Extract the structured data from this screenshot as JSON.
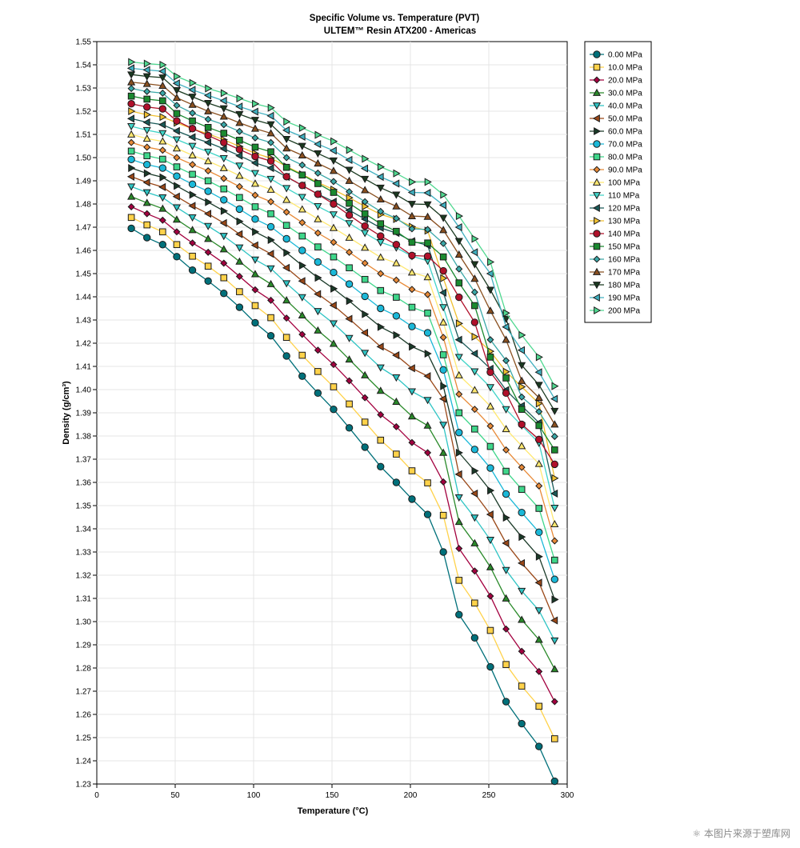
{
  "chart_data": {
    "type": "line",
    "title": "Specific Volume vs. Temperature (PVT)",
    "subtitle": "ULTEM™ Resin ATX200 - Americas",
    "xlabel": "Temperature (°C)",
    "ylabel": "Density (g/cm³)",
    "xlim": [
      0,
      300
    ],
    "ylim": [
      1.23,
      1.55
    ],
    "xticks": [
      0,
      50,
      100,
      150,
      200,
      250,
      300
    ],
    "yticks": [
      1.23,
      1.24,
      1.25,
      1.26,
      1.27,
      1.28,
      1.29,
      1.3,
      1.31,
      1.32,
      1.33,
      1.34,
      1.35,
      1.36,
      1.37,
      1.38,
      1.39,
      1.4,
      1.41,
      1.42,
      1.43,
      1.44,
      1.45,
      1.46,
      1.47,
      1.48,
      1.49,
      1.5,
      1.51,
      1.52,
      1.53,
      1.54,
      1.55
    ],
    "grid": true,
    "legend_position": "right",
    "x": [
      22,
      32,
      42,
      51,
      61,
      71,
      81,
      91,
      101,
      111,
      121,
      131,
      141,
      151,
      161,
      171,
      181,
      191,
      201,
      211,
      221,
      231,
      241,
      251,
      261,
      271,
      282,
      292
    ],
    "series": [
      {
        "name": "0.00 MPa",
        "marker": "circle",
        "color": "#00707a",
        "values": [
          1.4695,
          1.4655,
          1.4625,
          1.4573,
          1.4515,
          1.4468,
          1.4415,
          1.4355,
          1.4288,
          1.4232,
          1.4145,
          1.4058,
          1.3985,
          1.3915,
          1.3835,
          1.3752,
          1.3668,
          1.36,
          1.3528,
          1.3462,
          1.33,
          1.303,
          1.293,
          1.2805,
          1.2655,
          1.256,
          1.2462,
          1.2312
        ]
      },
      {
        "name": "10.0 MPa",
        "marker": "square",
        "color": "#ffd24a",
        "values": [
          1.4742,
          1.471,
          1.468,
          1.4625,
          1.4575,
          1.4532,
          1.4482,
          1.4422,
          1.4362,
          1.431,
          1.4225,
          1.4148,
          1.4078,
          1.4012,
          1.3938,
          1.386,
          1.3782,
          1.3722,
          1.365,
          1.3598,
          1.3458,
          1.3178,
          1.308,
          1.2962,
          1.2815,
          1.2722,
          1.2635,
          1.2495
        ]
      },
      {
        "name": "20.0 MPa",
        "marker": "diamond",
        "color": "#a3003f",
        "values": [
          1.4788,
          1.4758,
          1.473,
          1.468,
          1.4632,
          1.4592,
          1.4545,
          1.4488,
          1.443,
          1.4385,
          1.4308,
          1.4238,
          1.417,
          1.4108,
          1.4038,
          1.3965,
          1.3892,
          1.384,
          1.3772,
          1.3728,
          1.3602,
          1.3315,
          1.3218,
          1.311,
          1.2968,
          1.2872,
          1.2785,
          1.2655
        ]
      },
      {
        "name": "30.0 MPa",
        "marker": "triangle-up",
        "color": "#2a8a2a",
        "values": [
          1.4832,
          1.4805,
          1.478,
          1.4733,
          1.4688,
          1.465,
          1.4605,
          1.4552,
          1.4498,
          1.4455,
          1.4385,
          1.432,
          1.4255,
          1.4198,
          1.413,
          1.4062,
          1.3995,
          1.3948,
          1.3885,
          1.3845,
          1.3728,
          1.343,
          1.3338,
          1.3235,
          1.31,
          1.3008,
          1.2922,
          1.2795
        ]
      },
      {
        "name": "40.0 MPa",
        "marker": "triangle-down",
        "color": "#2ec4c4",
        "values": [
          1.4875,
          1.485,
          1.4828,
          1.4785,
          1.4742,
          1.4705,
          1.4662,
          1.4612,
          1.456,
          1.4522,
          1.4458,
          1.4398,
          1.4338,
          1.4285,
          1.4222,
          1.4158,
          1.4095,
          1.4052,
          1.3992,
          1.3955,
          1.3848,
          1.3535,
          1.3448,
          1.3352,
          1.3222,
          1.3132,
          1.3048,
          1.2918
        ]
      },
      {
        "name": "50.0 MPa",
        "marker": "triangle-left",
        "color": "#9a4818",
        "values": [
          1.4918,
          1.4893,
          1.4873,
          1.4832,
          1.4792,
          1.4758,
          1.4718,
          1.467,
          1.4622,
          1.4585,
          1.4525,
          1.4468,
          1.4412,
          1.4363,
          1.4305,
          1.4245,
          1.4185,
          1.4148,
          1.4092,
          1.4058,
          1.396,
          1.3635,
          1.3552,
          1.3462,
          1.3338,
          1.3252,
          1.3168,
          1.3005
        ]
      },
      {
        "name": "60.0 MPa",
        "marker": "triangle-right",
        "color": "#1a3a28",
        "values": [
          1.4955,
          1.4932,
          1.4915,
          1.4878,
          1.484,
          1.4808,
          1.477,
          1.4725,
          1.468,
          1.4645,
          1.459,
          1.4535,
          1.4482,
          1.4435,
          1.4382,
          1.4325,
          1.427,
          1.4235,
          1.4185,
          1.4155,
          1.4015,
          1.3728,
          1.365,
          1.3565,
          1.3448,
          1.3365,
          1.328,
          1.3095
        ]
      },
      {
        "name": "70.0 MPa",
        "marker": "circle",
        "color": "#1ab8d8",
        "values": [
          1.4992,
          1.497,
          1.4955,
          1.492,
          1.4885,
          1.4855,
          1.4818,
          1.4778,
          1.4735,
          1.4702,
          1.465,
          1.46,
          1.455,
          1.4505,
          1.4455,
          1.4402,
          1.435,
          1.4318,
          1.4272,
          1.4245,
          1.4085,
          1.3815,
          1.3742,
          1.3662,
          1.355,
          1.347,
          1.3385,
          1.3182
        ]
      },
      {
        "name": "80.0 MPa",
        "marker": "square",
        "color": "#3ed68a",
        "values": [
          1.5028,
          1.5008,
          1.4993,
          1.496,
          1.4928,
          1.49,
          1.4865,
          1.4828,
          1.4788,
          1.4758,
          1.4708,
          1.4662,
          1.4615,
          1.4572,
          1.4525,
          1.4475,
          1.4427,
          1.4398,
          1.4355,
          1.433,
          1.415,
          1.39,
          1.383,
          1.3755,
          1.3648,
          1.357,
          1.3488,
          1.3265
        ]
      },
      {
        "name": "90.0 MPa",
        "marker": "diamond",
        "color": "#e88a38",
        "values": [
          1.5065,
          1.5045,
          1.5032,
          1.5,
          1.497,
          1.4943,
          1.491,
          1.4875,
          1.4838,
          1.481,
          1.4765,
          1.472,
          1.4675,
          1.4635,
          1.4592,
          1.4545,
          1.45,
          1.4472,
          1.4432,
          1.441,
          1.4225,
          1.398,
          1.3915,
          1.3843,
          1.374,
          1.3665,
          1.3585,
          1.3348
        ]
      },
      {
        "name": "100 MPa",
        "marker": "triangle-up",
        "color": "#ffe870",
        "values": [
          1.51,
          1.5082,
          1.507,
          1.504,
          1.501,
          1.4985,
          1.4955,
          1.4922,
          1.4888,
          1.4862,
          1.4818,
          1.4777,
          1.4735,
          1.4697,
          1.4655,
          1.4612,
          1.457,
          1.4545,
          1.4505,
          1.4485,
          1.429,
          1.4062,
          1.3998,
          1.3928,
          1.383,
          1.3757,
          1.368,
          1.342
        ]
      },
      {
        "name": "110 MPa",
        "marker": "triangle-down",
        "color": "#40d4c8",
        "values": [
          1.5135,
          1.5118,
          1.5105,
          1.5078,
          1.505,
          1.5025,
          1.4997,
          1.4965,
          1.4933,
          1.4908,
          1.4868,
          1.483,
          1.479,
          1.4755,
          1.4717,
          1.4675,
          1.4635,
          1.4612,
          1.4575,
          1.4555,
          1.4355,
          1.414,
          1.4078,
          1.401,
          1.3915,
          1.3845,
          1.377,
          1.349
        ]
      },
      {
        "name": "120 MPa",
        "marker": "triangle-left",
        "color": "#1a5a58",
        "values": [
          1.5168,
          1.5152,
          1.5142,
          1.5115,
          1.5088,
          1.5065,
          1.5038,
          1.5008,
          1.4977,
          1.4955,
          1.4917,
          1.488,
          1.4843,
          1.481,
          1.4773,
          1.4735,
          1.4697,
          1.4675,
          1.464,
          1.4622,
          1.4418,
          1.4215,
          1.4155,
          1.409,
          1.3998,
          1.393,
          1.3857,
          1.3552
        ]
      },
      {
        "name": "130 MPa",
        "marker": "triangle-right",
        "color": "#f0c030",
        "values": [
          1.52,
          1.5185,
          1.5175,
          1.515,
          1.5124,
          1.5102,
          1.5077,
          1.5048,
          1.5018,
          1.4998,
          1.4962,
          1.4928,
          1.4893,
          1.4862,
          1.4827,
          1.479,
          1.4755,
          1.4735,
          1.4702,
          1.4685,
          1.448,
          1.4285,
          1.4228,
          1.4165,
          1.4077,
          1.4012,
          1.394,
          1.3618
        ]
      },
      {
        "name": "140 MPa",
        "marker": "circle",
        "color": "#b0102a",
        "values": [
          1.5232,
          1.5218,
          1.521,
          1.5158,
          1.5125,
          1.5095,
          1.5065,
          1.5035,
          1.5005,
          1.4985,
          1.4918,
          1.488,
          1.4842,
          1.48,
          1.4752,
          1.4705,
          1.4662,
          1.4625,
          1.4578,
          1.4575,
          1.4512,
          1.4398,
          1.429,
          1.4075,
          1.3985,
          1.385,
          1.3785,
          1.3678
        ]
      },
      {
        "name": "150 MPa",
        "marker": "square",
        "color": "#1a8a30",
        "values": [
          1.5265,
          1.5252,
          1.5245,
          1.519,
          1.5158,
          1.513,
          1.5105,
          1.5075,
          1.5045,
          1.5025,
          1.4958,
          1.4925,
          1.4888,
          1.485,
          1.4803,
          1.4758,
          1.4715,
          1.4682,
          1.4635,
          1.4632,
          1.4572,
          1.446,
          1.4362,
          1.414,
          1.405,
          1.3915,
          1.3845,
          1.374
        ]
      },
      {
        "name": "160 MPa",
        "marker": "diamond",
        "color": "#3aa8a8",
        "values": [
          1.5298,
          1.5285,
          1.5278,
          1.5225,
          1.5192,
          1.5165,
          1.5142,
          1.5113,
          1.5085,
          1.5065,
          1.5,
          1.4968,
          1.4933,
          1.4897,
          1.4853,
          1.481,
          1.4768,
          1.4738,
          1.4693,
          1.469,
          1.463,
          1.452,
          1.442,
          1.4215,
          1.4125,
          1.3968,
          1.3905,
          1.3798
        ]
      },
      {
        "name": "170 MPa",
        "marker": "triangle-up",
        "color": "#8a5020",
        "values": [
          1.5325,
          1.5318,
          1.531,
          1.5258,
          1.5228,
          1.52,
          1.5177,
          1.515,
          1.5125,
          1.5105,
          1.504,
          1.501,
          1.4975,
          1.4943,
          1.49,
          1.486,
          1.482,
          1.479,
          1.4748,
          1.4745,
          1.4688,
          1.4582,
          1.4478,
          1.434,
          1.4215,
          1.4038,
          1.3965,
          1.385
        ]
      },
      {
        "name": "180 MPa",
        "marker": "triangle-down",
        "color": "#1a3a20",
        "values": [
          1.5358,
          1.535,
          1.5345,
          1.529,
          1.5262,
          1.5235,
          1.5212,
          1.5187,
          1.5162,
          1.5143,
          1.508,
          1.505,
          1.5018,
          1.4987,
          1.4947,
          1.4908,
          1.487,
          1.484,
          1.48,
          1.4798,
          1.474,
          1.464,
          1.454,
          1.443,
          1.4305,
          1.4105,
          1.402,
          1.3908
        ]
      },
      {
        "name": "190 MPa",
        "marker": "triangle-left",
        "color": "#40b0c0",
        "values": [
          1.5385,
          1.5378,
          1.5372,
          1.532,
          1.5292,
          1.5268,
          1.5245,
          1.522,
          1.5198,
          1.518,
          1.5118,
          1.509,
          1.5058,
          1.503,
          1.499,
          1.4953,
          1.4917,
          1.4888,
          1.485,
          1.4848,
          1.4795,
          1.47,
          1.4592,
          1.45,
          1.427,
          1.417,
          1.4075,
          1.396
        ]
      },
      {
        "name": "200 MPa",
        "marker": "triangle-right",
        "color": "#50d890",
        "values": [
          1.5412,
          1.5405,
          1.54,
          1.535,
          1.5322,
          1.5298,
          1.5278,
          1.5255,
          1.5232,
          1.5215,
          1.5155,
          1.5128,
          1.5098,
          1.507,
          1.5033,
          1.4995,
          1.496,
          1.4932,
          1.4895,
          1.4895,
          1.484,
          1.4748,
          1.465,
          1.455,
          1.433,
          1.4235,
          1.414,
          1.4015
        ]
      }
    ]
  },
  "watermark": "⚛ 本图片来源于塑库网"
}
